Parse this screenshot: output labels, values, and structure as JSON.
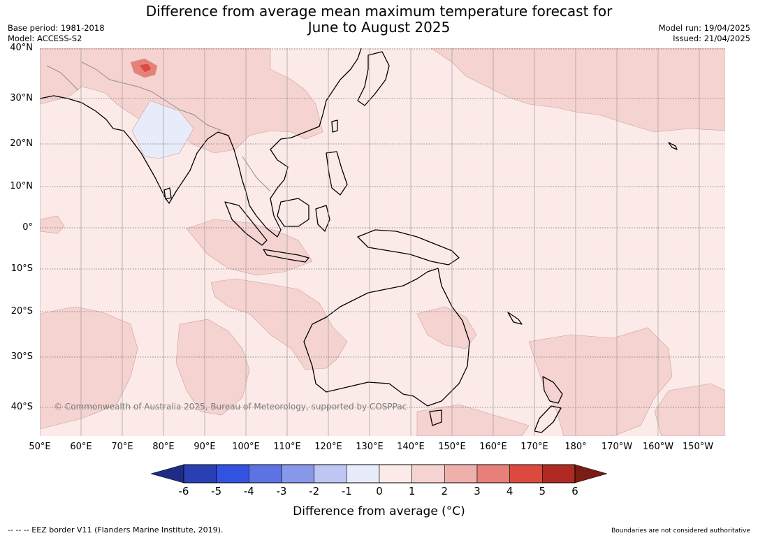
{
  "header": {
    "title_line1": "Difference from average mean maximum temperature forecast for",
    "title_line2": "June to August 2025",
    "base_period": "Base period: 1981-2018",
    "model": "Model: ACCESS-S2",
    "model_run": "Model run: 19/04/2025",
    "issued": "Issued: 21/04/2025"
  },
  "map": {
    "lat_labels": [
      "40°N",
      "30°N",
      "20°N",
      "10°N",
      "0°",
      "10°S",
      "20°S",
      "30°S",
      "40°S"
    ],
    "lon_labels": [
      "50°E",
      "60°E",
      "70°E",
      "80°E",
      "90°E",
      "100°E",
      "110°E",
      "120°E",
      "130°E",
      "140°E",
      "150°E",
      "160°E",
      "170°E",
      "180°",
      "170°W",
      "160°W",
      "150°W"
    ],
    "copyright": "© Commonwealth of Australia 2025, Bureau of Meteorology, supported by COSPPac"
  },
  "colorbar": {
    "title": "Difference from average (°C)",
    "ticks": [
      "-6",
      "-5",
      "-4",
      "-3",
      "-2",
      "-1",
      "0",
      "1",
      "2",
      "3",
      "4",
      "5",
      "6"
    ],
    "colors": [
      "#1f2c86",
      "#2b3fb4",
      "#3153e0",
      "#5d73e3",
      "#8797ea",
      "#bec6f3",
      "#e8ebfa",
      "#fbeae8",
      "#f5d3d1",
      "#efb0ac",
      "#e78078",
      "#dc4a3f",
      "#ae2a22",
      "#7b1c15"
    ]
  },
  "footer": {
    "eez_note": "--  --  -- EEZ border V11 (Flanders Marine Institute, 2019).",
    "boundaries_note": "Boundaries are not considered authoritative"
  }
}
